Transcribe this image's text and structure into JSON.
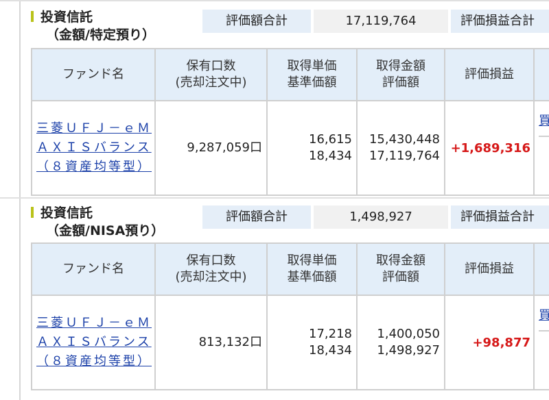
{
  "sections": [
    {
      "title_line1": "投資信託",
      "title_line2": "（金額/特定預り）",
      "valuation_total_label": "評価額合計",
      "valuation_total_value": "17,119,764",
      "gain_total_label": "評価損益合計",
      "table_headers": {
        "fund_name": "ファンド名",
        "units_line1": "保有口数",
        "units_line2": "(売却注文中)",
        "unit_price_line1": "取得単価",
        "unit_price_line2": "基準価額",
        "amount_line1": "取得金額",
        "amount_line2": "評価額",
        "gain": "評価損益"
      },
      "rows": [
        {
          "fund_name": "三菱ＵＦＪ－ｅＭＡＸＩＳバランス（８資産均等型）",
          "units": "9,287,059口",
          "acquisition_unit_price": "16,615",
          "base_price": "18,434",
          "acquisition_amount": "15,430,448",
          "valuation": "17,119,764",
          "gain": "+1,689,316",
          "action_label": "買"
        }
      ]
    },
    {
      "title_line1": "投資信託",
      "title_line2": "（金額/NISA預り）",
      "valuation_total_label": "評価額合計",
      "valuation_total_value": "1,498,927",
      "gain_total_label": "評価損益合計",
      "table_headers": {
        "fund_name": "ファンド名",
        "units_line1": "保有口数",
        "units_line2": "(売却注文中)",
        "unit_price_line1": "取得単価",
        "unit_price_line2": "基準価額",
        "amount_line1": "取得金額",
        "amount_line2": "評価額",
        "gain": "評価損益"
      },
      "rows": [
        {
          "fund_name": "三菱ＵＦＪ－ｅＭＡＸＩＳバランス（８資産均等型）",
          "units": "813,132口",
          "acquisition_unit_price": "17,218",
          "base_price": "18,434",
          "acquisition_amount": "1,400,050",
          "valuation": "1,498,927",
          "gain": "+98,877",
          "action_label": "買"
        }
      ]
    }
  ],
  "colors": {
    "header_bg": "#e3eef9",
    "link": "#1a3fa8",
    "gain_positive": "#d61818",
    "title_accent": "#b9c21a"
  }
}
